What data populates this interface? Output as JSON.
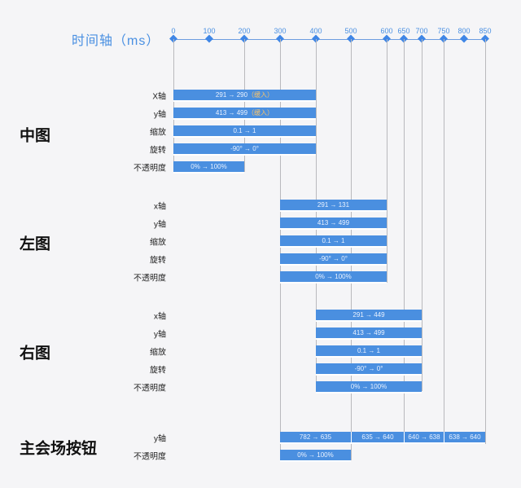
{
  "axis": {
    "title": "时间轴（ms）",
    "ticks": [
      0,
      100,
      200,
      300,
      400,
      500,
      600,
      650,
      700,
      750,
      800,
      850
    ]
  },
  "groups": [
    {
      "title": "中图",
      "rows": [
        {
          "label": "X轴",
          "segments": [
            {
              "start": 0,
              "end": 400,
              "text": "291 → 290",
              "note": "（缓入）"
            }
          ]
        },
        {
          "label": "y轴",
          "segments": [
            {
              "start": 0,
              "end": 400,
              "text": "413 → 499",
              "note": "（缓入）"
            }
          ]
        },
        {
          "label": "缩放",
          "segments": [
            {
              "start": 0,
              "end": 400,
              "text": "0.1 → 1"
            }
          ]
        },
        {
          "label": "旋转",
          "segments": [
            {
              "start": 0,
              "end": 400,
              "text": "-90° → 0°"
            }
          ]
        },
        {
          "label": "不透明度",
          "segments": [
            {
              "start": 0,
              "end": 200,
              "text": "0% → 100%"
            }
          ]
        }
      ]
    },
    {
      "title": "左图",
      "rows": [
        {
          "label": "x轴",
          "segments": [
            {
              "start": 300,
              "end": 600,
              "text": "291 → 131"
            }
          ]
        },
        {
          "label": "y轴",
          "segments": [
            {
              "start": 300,
              "end": 600,
              "text": "413 → 499"
            }
          ]
        },
        {
          "label": "缩放",
          "segments": [
            {
              "start": 300,
              "end": 600,
              "text": "0.1 → 1"
            }
          ]
        },
        {
          "label": "旋转",
          "segments": [
            {
              "start": 300,
              "end": 600,
              "text": "-90° → 0°"
            }
          ]
        },
        {
          "label": "不透明度",
          "segments": [
            {
              "start": 300,
              "end": 600,
              "text": "0% → 100%"
            }
          ]
        }
      ]
    },
    {
      "title": "右图",
      "rows": [
        {
          "label": "x轴",
          "segments": [
            {
              "start": 400,
              "end": 700,
              "text": "291 → 449"
            }
          ]
        },
        {
          "label": "y轴",
          "segments": [
            {
              "start": 400,
              "end": 700,
              "text": "413 → 499"
            }
          ]
        },
        {
          "label": "缩放",
          "segments": [
            {
              "start": 400,
              "end": 700,
              "text": "0.1 → 1"
            }
          ]
        },
        {
          "label": "旋转",
          "segments": [
            {
              "start": 400,
              "end": 700,
              "text": "-90° → 0°"
            }
          ]
        },
        {
          "label": "不透明度",
          "segments": [
            {
              "start": 400,
              "end": 700,
              "text": "0% → 100%"
            }
          ]
        }
      ]
    },
    {
      "title": "主会场按钮",
      "rows": [
        {
          "label": "y轴",
          "segments": [
            {
              "start": 300,
              "end": 500,
              "text": "782 → 635"
            },
            {
              "start": 500,
              "end": 650,
              "text": "635 → 640"
            },
            {
              "start": 650,
              "end": 750,
              "text": "640 → 638"
            },
            {
              "start": 750,
              "end": 850,
              "text": "638 → 640"
            }
          ]
        },
        {
          "label": "不透明度",
          "segments": [
            {
              "start": 300,
              "end": 500,
              "text": "0% → 100%"
            }
          ]
        }
      ]
    }
  ],
  "colors": {
    "bar": "#4a8fe0",
    "accent": "#4a90e2",
    "note": "#f5c26b"
  }
}
